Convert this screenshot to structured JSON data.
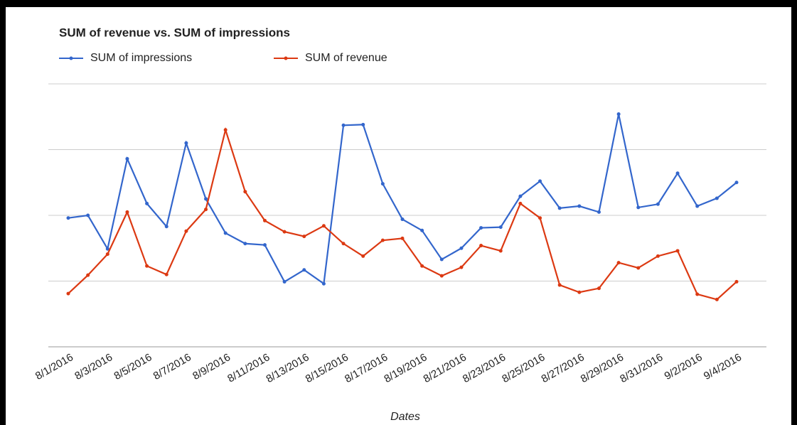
{
  "chart_data": {
    "type": "line",
    "title": "SUM of revenue vs. SUM of impressions",
    "x_label": "Dates",
    "categories": [
      "8/1/2016",
      null,
      "8/3/2016",
      null,
      "8/5/2016",
      null,
      "8/7/2016",
      null,
      "8/9/2016",
      null,
      "8/11/2016",
      null,
      "8/13/2016",
      null,
      "8/15/2016",
      null,
      "8/17/2016",
      null,
      "8/19/2016",
      null,
      "8/21/2016",
      null,
      "8/23/2016",
      null,
      "8/25/2016",
      null,
      "8/27/2016",
      null,
      "8/29/2016",
      null,
      "8/31/2016",
      null,
      "9/2/2016",
      null,
      "9/4/2016"
    ],
    "series": [
      {
        "name": "SUM of impressions",
        "color": "#3366cc",
        "values": [
          1.96,
          2.0,
          1.49,
          2.86,
          2.18,
          1.83,
          3.1,
          2.25,
          1.73,
          1.57,
          1.55,
          0.99,
          1.17,
          0.96,
          3.37,
          3.38,
          2.48,
          1.94,
          1.77,
          1.33,
          1.5,
          1.81,
          1.82,
          2.29,
          2.52,
          2.11,
          2.14,
          2.05,
          3.54,
          2.12,
          2.17,
          2.64,
          2.14,
          2.26,
          2.5
        ]
      },
      {
        "name": "SUM of revenue",
        "color": "#dc3912",
        "values": [
          0.81,
          1.09,
          1.41,
          2.05,
          1.23,
          1.1,
          1.76,
          2.09,
          3.3,
          2.36,
          1.92,
          1.75,
          1.68,
          1.84,
          1.57,
          1.38,
          1.62,
          1.65,
          1.23,
          1.08,
          1.21,
          1.54,
          1.46,
          2.18,
          1.96,
          0.94,
          0.83,
          0.89,
          1.28,
          1.2,
          1.38,
          1.46,
          0.8,
          0.72,
          0.99
        ]
      }
    ],
    "ylim": [
      0,
      4
    ],
    "yticks": [
      0,
      1,
      2,
      3,
      4
    ],
    "grid": true,
    "legend": "top-left"
  }
}
